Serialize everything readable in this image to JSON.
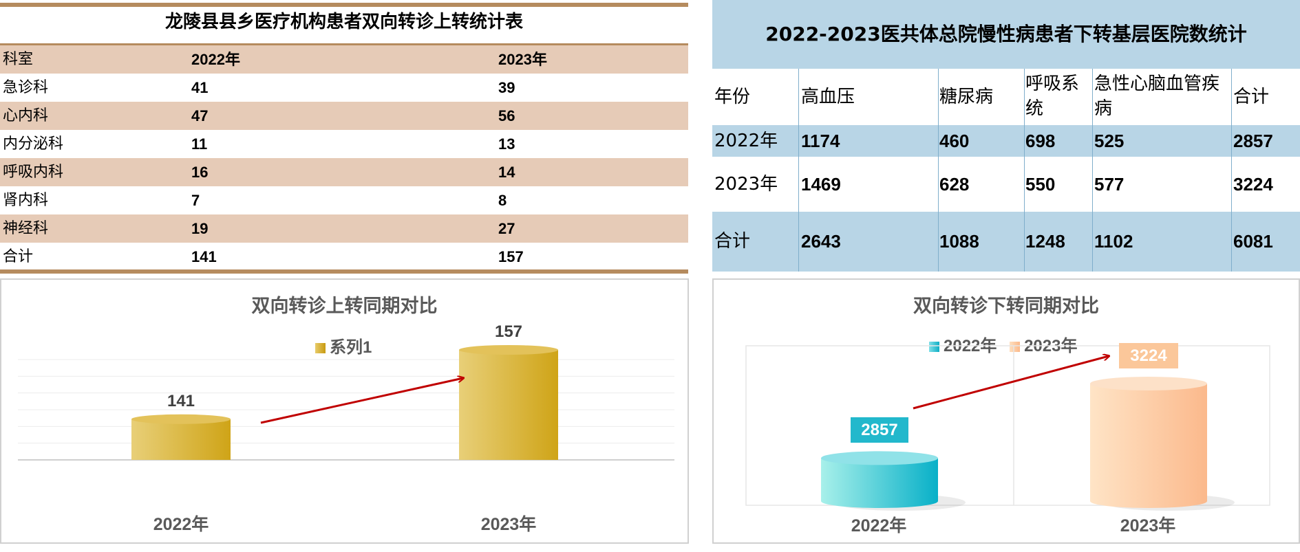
{
  "left_table": {
    "title": "龙陵县县乡医疗机构患者双向转诊上转统计表",
    "headers": [
      "科室",
      "2022年",
      "2023年"
    ],
    "rows": [
      [
        "急诊科",
        "41",
        "39"
      ],
      [
        "心内科",
        "47",
        "56"
      ],
      [
        "内分泌科",
        "11",
        "13"
      ],
      [
        "呼吸内科",
        "16",
        "14"
      ],
      [
        "肾内科",
        "7",
        "8"
      ],
      [
        "神经科",
        "19",
        "27"
      ],
      [
        "合计",
        "141",
        "157"
      ]
    ]
  },
  "right_table": {
    "title": "2022-2023医共体总院慢性病患者下转基层医院数统计",
    "headers": [
      "年份",
      "高血压",
      "糖尿病",
      "呼吸系统",
      "急性心脑血管疾病",
      "合计"
    ],
    "rows": [
      [
        "2022年",
        "1174",
        "460",
        "698",
        "525",
        "2857"
      ],
      [
        "2023年",
        "1469",
        "628",
        "550",
        "577",
        "3224"
      ],
      [
        "合计",
        "2643",
        "1088",
        "1248",
        "1102",
        "6081"
      ]
    ]
  },
  "chart_data": [
    {
      "type": "bar",
      "title": "双向转诊上转同期对比",
      "categories": [
        "2022年",
        "2023年"
      ],
      "series": [
        {
          "name": "系列1",
          "values": [
            141,
            157
          ]
        }
      ],
      "grid": true,
      "legend": "top",
      "colors": {
        "bar": "#d8b030",
        "arrow": "#c00000"
      }
    },
    {
      "type": "bar",
      "title": "双向转诊下转同期对比",
      "categories": [
        "2022年",
        "2023年"
      ],
      "series": [
        {
          "name": "2022年",
          "values": [
            2857,
            null
          ]
        },
        {
          "name": "2023年",
          "values": [
            null,
            3224
          ]
        }
      ],
      "grid": false,
      "legend": "top",
      "colors": {
        "s2022": "#22b8cc",
        "s2023": "#fbbd8e",
        "arrow": "#c00000"
      }
    }
  ]
}
